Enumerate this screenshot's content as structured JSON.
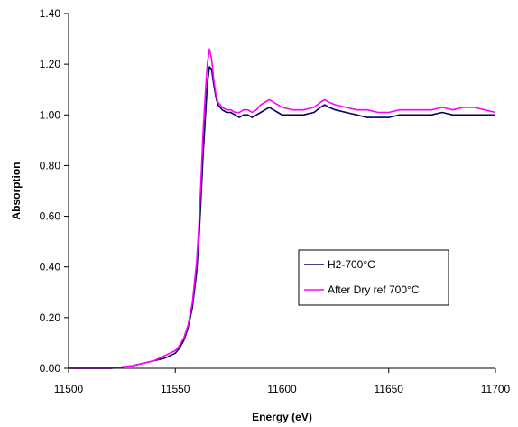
{
  "chart_data": {
    "type": "line",
    "title": "",
    "xlabel": "Energy (eV)",
    "ylabel": "Absorption",
    "xlim": [
      11500,
      11700
    ],
    "ylim": [
      0,
      1.4
    ],
    "x_ticks": [
      "11500",
      "11550",
      "11600",
      "11650",
      "11700"
    ],
    "y_ticks": [
      "0.00",
      "0.20",
      "0.40",
      "0.60",
      "0.80",
      "1.00",
      "1.20",
      "1.40"
    ],
    "grid": false,
    "legend_position": "lower-right",
    "series": [
      {
        "name": "H2-700°C",
        "color": "#000066",
        "x": [
          11500,
          11510,
          11520,
          11530,
          11535,
          11540,
          11545,
          11550,
          11552,
          11554,
          11556,
          11558,
          11560,
          11561,
          11562,
          11563,
          11564,
          11565,
          11566,
          11567,
          11568,
          11569,
          11570,
          11572,
          11574,
          11576,
          11578,
          11580,
          11582,
          11584,
          11586,
          11588,
          11590,
          11592,
          11594,
          11596,
          11598,
          11600,
          11605,
          11610,
          11615,
          11618,
          11620,
          11622,
          11625,
          11630,
          11635,
          11640,
          11645,
          11650,
          11655,
          11660,
          11665,
          11670,
          11675,
          11680,
          11685,
          11690,
          11695,
          11700
        ],
        "y": [
          0.0,
          0.0,
          0.0,
          0.01,
          0.02,
          0.03,
          0.04,
          0.06,
          0.08,
          0.11,
          0.16,
          0.24,
          0.38,
          0.5,
          0.66,
          0.84,
          0.98,
          1.12,
          1.19,
          1.18,
          1.12,
          1.07,
          1.04,
          1.02,
          1.01,
          1.01,
          1.0,
          0.99,
          1.0,
          1.0,
          0.99,
          1.0,
          1.01,
          1.02,
          1.03,
          1.02,
          1.01,
          1.0,
          1.0,
          1.0,
          1.01,
          1.03,
          1.04,
          1.03,
          1.02,
          1.01,
          1.0,
          0.99,
          0.99,
          0.99,
          1.0,
          1.0,
          1.0,
          1.0,
          1.01,
          1.0,
          1.0,
          1.0,
          1.0,
          1.0
        ]
      },
      {
        "name": "After Dry ref 700°C",
        "color": "#ff00ff",
        "x": [
          11500,
          11510,
          11520,
          11530,
          11535,
          11540,
          11545,
          11550,
          11552,
          11554,
          11556,
          11558,
          11560,
          11561,
          11562,
          11563,
          11564,
          11565,
          11566,
          11567,
          11568,
          11569,
          11570,
          11572,
          11574,
          11576,
          11578,
          11580,
          11582,
          11584,
          11586,
          11588,
          11590,
          11592,
          11594,
          11596,
          11598,
          11600,
          11605,
          11610,
          11615,
          11618,
          11620,
          11622,
          11625,
          11630,
          11635,
          11640,
          11645,
          11650,
          11655,
          11660,
          11665,
          11670,
          11675,
          11680,
          11685,
          11690,
          11695,
          11700
        ],
        "y": [
          0.0,
          0.0,
          0.0,
          0.01,
          0.02,
          0.03,
          0.05,
          0.07,
          0.09,
          0.12,
          0.17,
          0.26,
          0.42,
          0.56,
          0.73,
          0.93,
          1.08,
          1.2,
          1.26,
          1.22,
          1.14,
          1.08,
          1.05,
          1.03,
          1.02,
          1.02,
          1.01,
          1.01,
          1.02,
          1.02,
          1.01,
          1.02,
          1.04,
          1.05,
          1.06,
          1.05,
          1.04,
          1.03,
          1.02,
          1.02,
          1.03,
          1.05,
          1.06,
          1.05,
          1.04,
          1.03,
          1.02,
          1.02,
          1.01,
          1.01,
          1.02,
          1.02,
          1.02,
          1.02,
          1.03,
          1.02,
          1.03,
          1.03,
          1.02,
          1.01
        ]
      }
    ]
  }
}
